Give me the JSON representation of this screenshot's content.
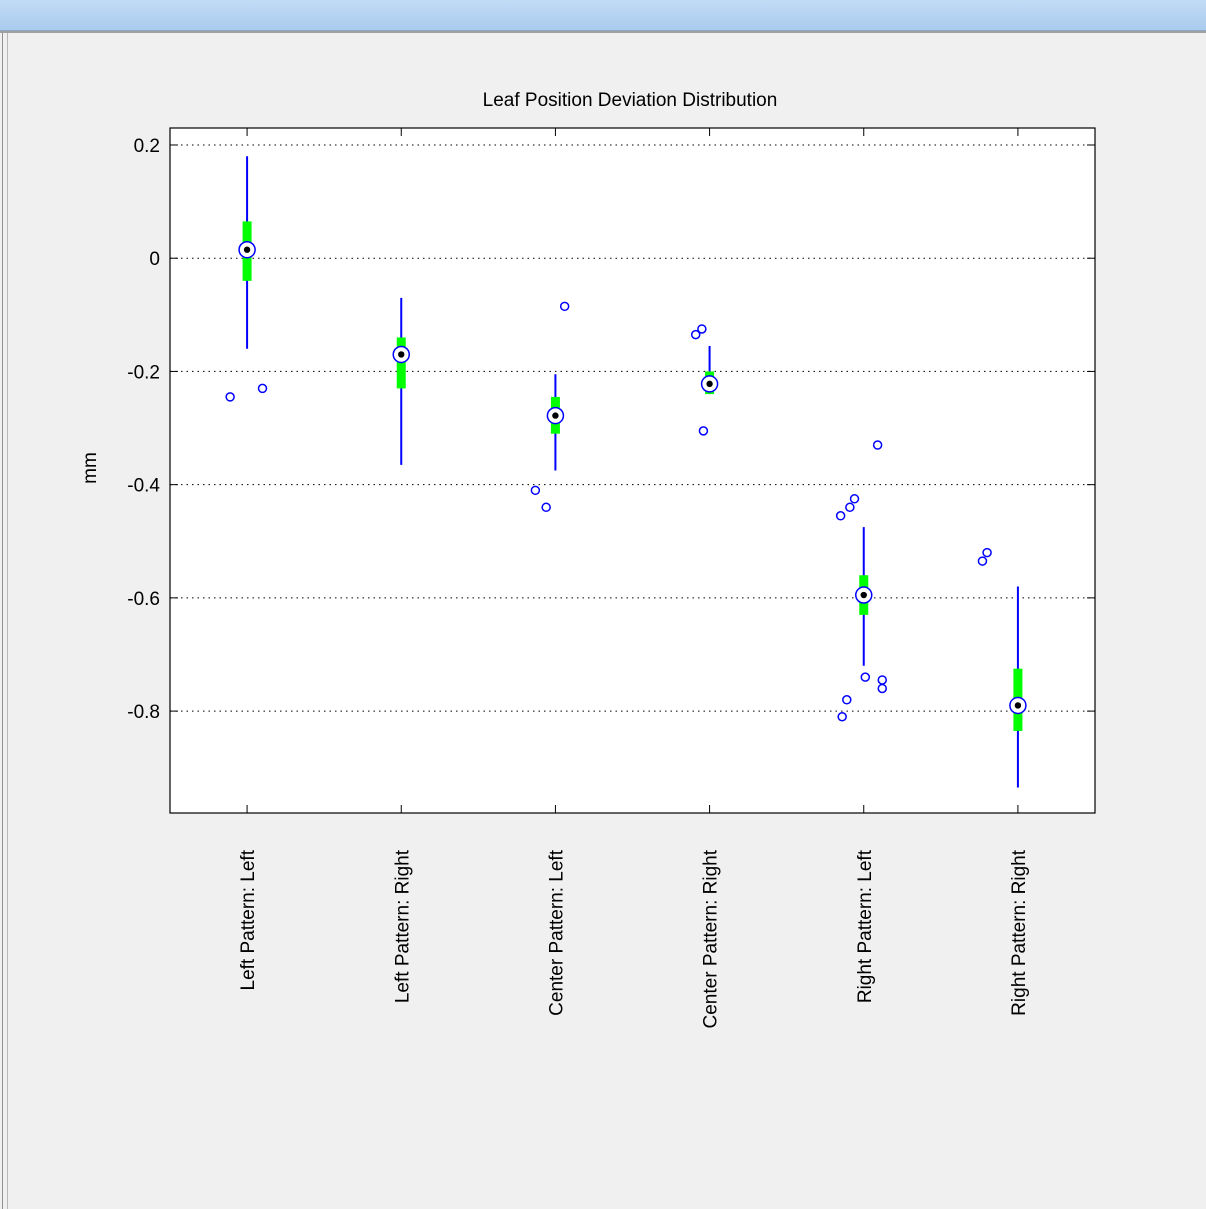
{
  "chart_data": {
    "type": "boxplot",
    "title": "Leaf Position Deviation Distribution",
    "xlabel": "",
    "ylabel": "mm",
    "ylim": [
      -0.98,
      0.23
    ],
    "yticks": [
      0.2,
      0,
      -0.2,
      -0.4,
      -0.6,
      -0.8
    ],
    "ytick_labels": [
      "0.2",
      "0",
      "-0.2",
      "-0.4",
      "-0.6",
      "-0.8"
    ],
    "grid": "horizontal-dotted",
    "categories": [
      "Left Pattern: Left",
      "Left Pattern: Right",
      "Center Pattern: Left",
      "Center Pattern: Right",
      "Right Pattern: Left",
      "Right Pattern: Right"
    ],
    "boxes": [
      {
        "whisker_low": -0.16,
        "q1": -0.04,
        "median": 0.015,
        "q3": 0.065,
        "whisker_high": 0.18,
        "outliers": [
          [
            -0.11,
            -0.245
          ],
          [
            0.1,
            -0.23
          ]
        ]
      },
      {
        "whisker_low": -0.365,
        "q1": -0.23,
        "median": -0.17,
        "q3": -0.14,
        "whisker_high": -0.07,
        "outliers": []
      },
      {
        "whisker_low": -0.375,
        "q1": -0.31,
        "median": -0.278,
        "q3": -0.245,
        "whisker_high": -0.205,
        "outliers": [
          [
            0.06,
            -0.085
          ],
          [
            -0.13,
            -0.41
          ],
          [
            -0.06,
            -0.44
          ]
        ]
      },
      {
        "whisker_low": -0.24,
        "q1": -0.24,
        "median": -0.222,
        "q3": -0.2,
        "whisker_high": -0.155,
        "outliers": [
          [
            -0.05,
            -0.125
          ],
          [
            -0.09,
            -0.135
          ],
          [
            -0.04,
            -0.305
          ]
        ]
      },
      {
        "whisker_low": -0.72,
        "q1": -0.63,
        "median": -0.595,
        "q3": -0.56,
        "whisker_high": -0.475,
        "outliers": [
          [
            0.09,
            -0.33
          ],
          [
            -0.06,
            -0.425
          ],
          [
            -0.09,
            -0.44
          ],
          [
            -0.15,
            -0.455
          ],
          [
            0.01,
            -0.74
          ],
          [
            0.12,
            -0.745
          ],
          [
            0.12,
            -0.76
          ],
          [
            -0.11,
            -0.78
          ],
          [
            -0.14,
            -0.81
          ]
        ]
      },
      {
        "whisker_low": -0.935,
        "q1": -0.835,
        "median": -0.79,
        "q3": -0.725,
        "whisker_high": -0.58,
        "outliers": [
          [
            -0.2,
            -0.52
          ],
          [
            -0.23,
            -0.535
          ]
        ]
      }
    ],
    "colors": {
      "whisker": "#0000ff",
      "box": "#00ff00",
      "median_marker": "#0000ff",
      "outlier": "#0000ff",
      "grid": "#000000",
      "axes": "#000000"
    }
  }
}
